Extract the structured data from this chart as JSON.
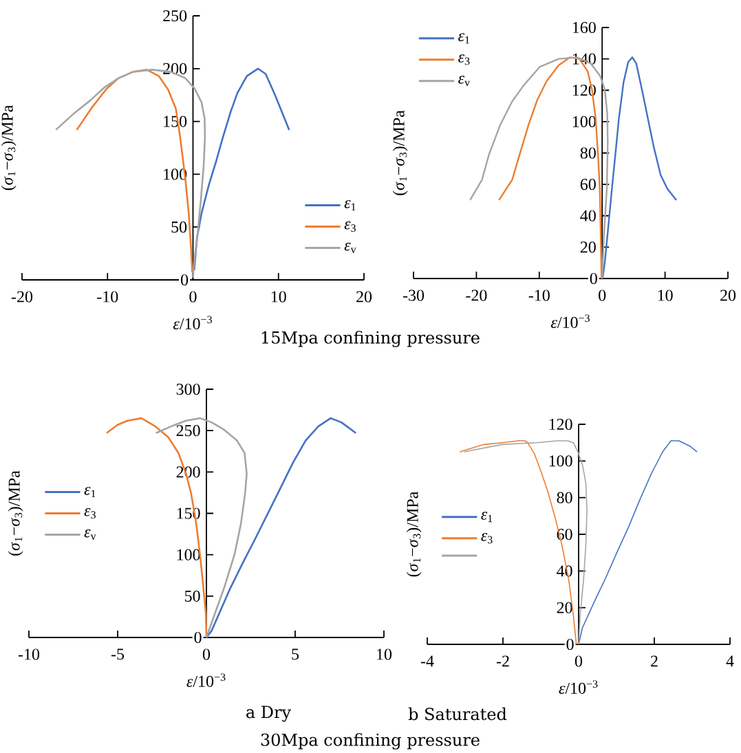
{
  "chart_data": [
    {
      "type": "line",
      "xlabel": "*ε*/10$^{−3}$",
      "ylabel": "(*σ*$_{1}$−*σ*$_{3}$)/MPa",
      "xlim": [
        -20,
        20
      ],
      "ylim": [
        0,
        250
      ],
      "xticks": [
        -20,
        -10,
        0,
        10,
        20
      ],
      "yticks": [
        0,
        50,
        100,
        150,
        200,
        250
      ],
      "legend": "bottom right",
      "annotations": [
        "15Mpa confining pressure"
      ],
      "series": [
        {
          "name": "*ε*$_{1}$",
          "color": "#4472c4",
          "x": [
            0.14,
            0.47,
            1.0,
            1.86,
            2.7,
            3.5,
            4.4,
            5.2,
            6.3,
            7.6,
            8.5,
            9.6,
            11.25
          ],
          "values": [
            9,
            40,
            63,
            90,
            112,
            135,
            159,
            177,
            193,
            200,
            195,
            175,
            142
          ]
        },
        {
          "name": "*ε*$_{3}$",
          "color": "#ed7d31",
          "x": [
            -0.08,
            -0.22,
            -0.5,
            -0.9,
            -1.5,
            -2.0,
            -2.9,
            -4.0,
            -5.4,
            -7.0,
            -8.7,
            -10.1,
            -11.75,
            -13.6
          ],
          "values": [
            7,
            29,
            63,
            96,
            135,
            162,
            180,
            193,
            199,
            197,
            191,
            181,
            164,
            142
          ]
        },
        {
          "name": "*ε*$_{v}$",
          "color": "#a5a5a5",
          "x": [
            0,
            0.14,
            0.5,
            0.9,
            1.25,
            1.4,
            1.36,
            1.0,
            0.2,
            -0.9,
            -2.6,
            -4.8,
            -7.0,
            -8.7,
            -10.4,
            -12.0,
            -14.0,
            -16.05
          ],
          "values": [
            2,
            18,
            40,
            74,
            108,
            135,
            153,
            168,
            181,
            191,
            197,
            199,
            197,
            191,
            182,
            170,
            157,
            142
          ]
        }
      ]
    },
    {
      "type": "line",
      "xlabel": "*ε*/10$^{−3}$",
      "ylabel": "(*σ*$_{1}$−*σ*$_{3}$)/MPa",
      "xlim": [
        -30,
        20
      ],
      "ylim": [
        0,
        160
      ],
      "xticks": [
        -30,
        -20,
        -10,
        0,
        10,
        20
      ],
      "yticks": [
        0,
        20,
        40,
        60,
        80,
        100,
        120,
        140,
        160
      ],
      "legend": "top left",
      "series": [
        {
          "name": "*ε*$_{1}$",
          "color": "#4472c4",
          "x": [
            0.07,
            0.44,
            1.0,
            1.55,
            2.1,
            2.66,
            3.4,
            4.14,
            4.8,
            5.43,
            6.35,
            7.27,
            8.2,
            9.3,
            10.4,
            11.8
          ],
          "values": [
            0,
            11,
            34,
            57,
            79,
            102,
            125,
            138,
            141,
            137,
            120,
            102,
            84,
            66,
            57,
            50
          ]
        },
        {
          "name": "*ε*$_{3}$",
          "color": "#ed7d31",
          "x": [
            -0.1,
            -0.22,
            -0.37,
            -0.66,
            -1.03,
            -1.6,
            -2.3,
            -3.6,
            -5.1,
            -6.9,
            -8.8,
            -10.3,
            -11.7,
            -13.2,
            -14.3,
            -16.4
          ],
          "values": [
            0,
            26,
            57,
            79,
            102,
            120,
            132,
            140,
            141,
            136,
            126,
            114,
            98,
            78,
            63,
            50
          ]
        },
        {
          "name": "*ε*$_{v}$",
          "color": "#a5a5a5",
          "x": [
            0,
            0.26,
            0.74,
            0.89,
            0.81,
            0.44,
            -0.3,
            -1.8,
            -4.0,
            -6.9,
            -9.9,
            -12.5,
            -14.3,
            -16.2,
            -18.0,
            -19.1,
            -21.0
          ],
          "values": [
            0,
            26,
            57,
            87,
            105,
            120,
            129,
            137,
            141,
            140,
            135,
            123,
            113,
            98,
            79,
            63,
            50
          ]
        }
      ]
    },
    {
      "type": "line",
      "xlabel": "*ε*/10$^{−3}$",
      "ylabel": "(*σ*$_{1}$−*σ*$_{3}$)/MPa",
      "xlim": [
        -10,
        10
      ],
      "ylim": [
        0,
        300
      ],
      "xticks": [
        -10,
        -5,
        0,
        5,
        10
      ],
      "yticks": [
        0,
        50,
        100,
        150,
        200,
        250,
        300
      ],
      "legend": "left",
      "annotations": [
        "a Dry"
      ],
      "series": [
        {
          "name": "*ε*$_{1}$",
          "color": "#4472c4",
          "x": [
            0,
            0.29,
            0.72,
            1.29,
            2.0,
            2.72,
            3.44,
            4.16,
            4.87,
            5.59,
            6.3,
            7.0,
            7.6,
            8.42
          ],
          "values": [
            0,
            8,
            29,
            57,
            88,
            118,
            149,
            180,
            211,
            238,
            255,
            265,
            260,
            247
          ]
        },
        {
          "name": "*ε*$_{3}$",
          "color": "#ed7d31",
          "x": [
            0,
            -0.03,
            -0.17,
            -0.36,
            -0.57,
            -0.86,
            -1.15,
            -1.58,
            -2.15,
            -2.87,
            -3.66,
            -4.44,
            -5.0,
            -5.62
          ],
          "values": [
            0,
            29,
            60,
            100,
            137,
            174,
            198,
            223,
            242,
            255,
            265,
            262,
            257,
            247
          ]
        },
        {
          "name": "*ε*$_{v}$",
          "color": "#a5a5a5",
          "x": [
            0,
            0.43,
            1.0,
            1.58,
            1.94,
            2.18,
            2.27,
            2.15,
            1.72,
            1.0,
            0.29,
            -0.36,
            -1.15,
            -2.0,
            -2.84
          ],
          "values": [
            0,
            26,
            60,
            100,
            137,
            174,
            198,
            223,
            238,
            251,
            260,
            265,
            262,
            255,
            247
          ]
        }
      ]
    },
    {
      "type": "line",
      "xlabel": "*ε*/10$^{−3}$",
      "ylabel": "(*σ*$_{1}$−*σ*$_{3}$)/MPa",
      "xlim": [
        -4,
        4
      ],
      "ylim": [
        0,
        120
      ],
      "xticks": [
        -4,
        -2,
        0,
        2,
        4
      ],
      "yticks": [
        0,
        20,
        40,
        60,
        80,
        100,
        120
      ],
      "legend": "left",
      "annotations": [
        "b Saturated",
        "30Mpa confining pressure"
      ],
      "series": [
        {
          "name": "*ε*$_{1}$",
          "color": "#4472c4",
          "x": [
            0,
            0.1,
            0.41,
            0.71,
            1.01,
            1.32,
            1.62,
            1.92,
            2.22,
            2.44,
            2.65,
            2.95,
            3.13
          ],
          "values": [
            0,
            9,
            23,
            36,
            50,
            64,
            79,
            93,
            105,
            111,
            111,
            108,
            105
          ]
        },
        {
          "name": "*ε*$_{3}$",
          "color": "#ed7d31",
          "x": [
            -0.06,
            -0.14,
            -0.26,
            -0.44,
            -0.62,
            -0.81,
            -0.99,
            -1.17,
            -1.35,
            -1.42,
            -1.59,
            -2.02,
            -2.5,
            -3.14
          ],
          "values": [
            0,
            16,
            35,
            54,
            69,
            83,
            94,
            104,
            110,
            111,
            111,
            110,
            109,
            105
          ]
        },
        {
          "color": "#a5a5a5",
          "x": [
            0,
            0.04,
            0.13,
            0.19,
            0.22,
            0.19,
            0.1,
            -0.02,
            -0.14,
            -0.29,
            -0.56,
            -1.11,
            -2.02,
            -3.02
          ],
          "values": [
            0,
            16,
            35,
            54,
            73,
            88,
            98,
            105,
            110,
            111,
            111,
            110,
            109,
            105
          ]
        }
      ]
    }
  ]
}
